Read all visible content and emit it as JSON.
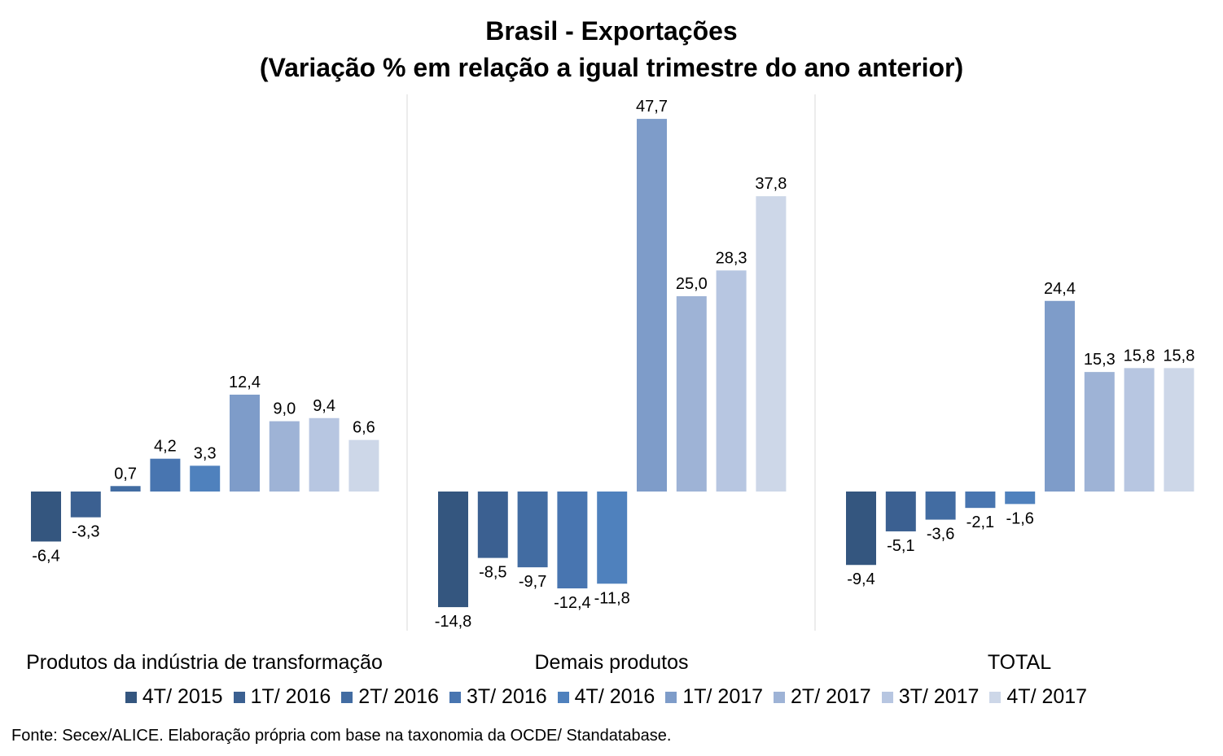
{
  "chart_data": {
    "type": "bar",
    "title": "Brasil - Exportações",
    "subtitle": "(Variação % em relação a igual trimestre do ano anterior)",
    "categories": [
      "Produtos da indústria de transformação",
      "Demais produtos",
      "TOTAL"
    ],
    "series": [
      {
        "name": "4T/ 2015",
        "color": "#34567F",
        "values": [
          -6.4,
          -14.8,
          -9.4
        ],
        "labels": [
          "-6,4",
          "-14,8",
          "-9,4"
        ]
      },
      {
        "name": "1T/ 2016",
        "color": "#3B6091",
        "values": [
          -3.3,
          -8.5,
          -5.1
        ],
        "labels": [
          "-3,3",
          "-8,5",
          "-5,1"
        ]
      },
      {
        "name": "2T/ 2016",
        "color": "#426CA2",
        "values": [
          0.7,
          -9.7,
          -3.6
        ],
        "labels": [
          "0,7",
          "-9,7",
          "-3,6"
        ]
      },
      {
        "name": "3T/ 2016",
        "color": "#4875B0",
        "values": [
          4.2,
          -12.4,
          -2.1
        ],
        "labels": [
          "4,2",
          "-12,4",
          "-2,1"
        ]
      },
      {
        "name": "4T/ 2016",
        "color": "#4F81BD",
        "values": [
          3.3,
          -11.8,
          -1.6
        ],
        "labels": [
          "3,3",
          "-11,8",
          "-1,6"
        ]
      },
      {
        "name": "1T/ 2017",
        "color": "#7E9CC9",
        "values": [
          12.4,
          47.7,
          24.4
        ],
        "labels": [
          "12,4",
          "47,7",
          "24,4"
        ]
      },
      {
        "name": "2T/ 2017",
        "color": "#9EB3D6",
        "values": [
          9.0,
          25.0,
          15.3
        ],
        "labels": [
          "9,0",
          "25,0",
          "15,3"
        ]
      },
      {
        "name": "3T/ 2017",
        "color": "#B7C6E1",
        "values": [
          9.4,
          28.3,
          15.8
        ],
        "labels": [
          "9,4",
          "28,3",
          "15,8"
        ]
      },
      {
        "name": "4T/ 2017",
        "color": "#CDD7E8",
        "values": [
          6.6,
          37.8,
          15.8
        ],
        "labels": [
          "6,6",
          "37,8",
          "15,8"
        ]
      }
    ],
    "grid": false,
    "legend_position": "bottom"
  },
  "source_note": "Fonte: Secex/ALICE. Elaboração própria com base na taxonomia da OCDE/ Standatabase."
}
